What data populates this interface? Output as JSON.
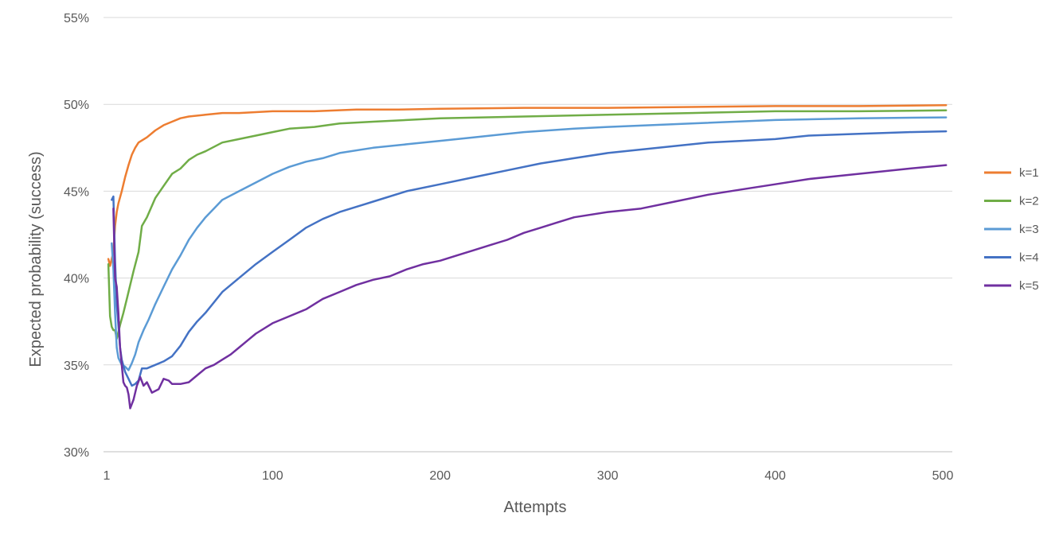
{
  "chart_data": {
    "type": "line",
    "title": "",
    "xlabel": "Attempts",
    "ylabel": "Expected probability (success)",
    "xlim": [
      1,
      505
    ],
    "ylim": [
      30,
      55
    ],
    "x_ticks": [
      1,
      100,
      200,
      300,
      400,
      500
    ],
    "y_ticks": [
      30,
      35,
      40,
      45,
      50,
      55
    ],
    "y_tick_labels": [
      "30%",
      "35%",
      "40%",
      "45%",
      "50%",
      "55%"
    ],
    "grid": "horizontal",
    "legend_position": "right",
    "series": [
      {
        "name": "k=1",
        "color": "#ED7D31",
        "points": [
          [
            2,
            41.1
          ],
          [
            3,
            40.7
          ],
          [
            5,
            41.5
          ],
          [
            6,
            43.0
          ],
          [
            7,
            43.8
          ],
          [
            8,
            44.3
          ],
          [
            10,
            45.0
          ],
          [
            12,
            45.8
          ],
          [
            14,
            46.5
          ],
          [
            16,
            47.1
          ],
          [
            18,
            47.5
          ],
          [
            20,
            47.8
          ],
          [
            25,
            48.1
          ],
          [
            30,
            48.5
          ],
          [
            35,
            48.8
          ],
          [
            40,
            49.0
          ],
          [
            45,
            49.2
          ],
          [
            50,
            49.3
          ],
          [
            60,
            49.4
          ],
          [
            70,
            49.5
          ],
          [
            80,
            49.5
          ],
          [
            100,
            49.6
          ],
          [
            125,
            49.6
          ],
          [
            150,
            49.7
          ],
          [
            175,
            49.7
          ],
          [
            200,
            49.75
          ],
          [
            250,
            49.8
          ],
          [
            300,
            49.8
          ],
          [
            350,
            49.85
          ],
          [
            400,
            49.9
          ],
          [
            450,
            49.9
          ],
          [
            502,
            49.95
          ]
        ]
      },
      {
        "name": "k=2",
        "color": "#70AD47",
        "points": [
          [
            2,
            40.8
          ],
          [
            3,
            37.8
          ],
          [
            4,
            37.2
          ],
          [
            5,
            37.0
          ],
          [
            6,
            37.0
          ],
          [
            7,
            36.5
          ],
          [
            9,
            37.3
          ],
          [
            11,
            38.0
          ],
          [
            13,
            38.8
          ],
          [
            15,
            39.6
          ],
          [
            17,
            40.4
          ],
          [
            20,
            41.5
          ],
          [
            22,
            43.0
          ],
          [
            25,
            43.5
          ],
          [
            30,
            44.6
          ],
          [
            35,
            45.3
          ],
          [
            40,
            46.0
          ],
          [
            45,
            46.3
          ],
          [
            50,
            46.8
          ],
          [
            55,
            47.1
          ],
          [
            60,
            47.3
          ],
          [
            70,
            47.8
          ],
          [
            80,
            48.0
          ],
          [
            90,
            48.2
          ],
          [
            100,
            48.4
          ],
          [
            110,
            48.6
          ],
          [
            125,
            48.7
          ],
          [
            140,
            48.9
          ],
          [
            160,
            49.0
          ],
          [
            180,
            49.1
          ],
          [
            200,
            49.2
          ],
          [
            250,
            49.3
          ],
          [
            300,
            49.4
          ],
          [
            350,
            49.5
          ],
          [
            400,
            49.6
          ],
          [
            450,
            49.6
          ],
          [
            502,
            49.65
          ]
        ]
      },
      {
        "name": "k=3",
        "color": "#5B9BD5",
        "points": [
          [
            4,
            42.0
          ],
          [
            5,
            40.5
          ],
          [
            6,
            38.0
          ],
          [
            7,
            36.0
          ],
          [
            8,
            35.4
          ],
          [
            10,
            35.0
          ],
          [
            12,
            34.9
          ],
          [
            14,
            34.7
          ],
          [
            16,
            35.1
          ],
          [
            18,
            35.6
          ],
          [
            20,
            36.3
          ],
          [
            23,
            37.0
          ],
          [
            26,
            37.6
          ],
          [
            30,
            38.5
          ],
          [
            35,
            39.5
          ],
          [
            40,
            40.5
          ],
          [
            45,
            41.3
          ],
          [
            50,
            42.2
          ],
          [
            55,
            42.9
          ],
          [
            60,
            43.5
          ],
          [
            65,
            44.0
          ],
          [
            70,
            44.5
          ],
          [
            80,
            45.0
          ],
          [
            90,
            45.5
          ],
          [
            100,
            46.0
          ],
          [
            110,
            46.4
          ],
          [
            120,
            46.7
          ],
          [
            130,
            46.9
          ],
          [
            140,
            47.2
          ],
          [
            160,
            47.5
          ],
          [
            180,
            47.7
          ],
          [
            200,
            47.9
          ],
          [
            220,
            48.1
          ],
          [
            250,
            48.4
          ],
          [
            280,
            48.6
          ],
          [
            300,
            48.7
          ],
          [
            350,
            48.9
          ],
          [
            400,
            49.1
          ],
          [
            450,
            49.2
          ],
          [
            502,
            49.25
          ]
        ]
      },
      {
        "name": "k=4",
        "color": "#4472C4",
        "points": [
          [
            4,
            44.5
          ],
          [
            5,
            44.7
          ],
          [
            6,
            41.0
          ],
          [
            7,
            38.5
          ],
          [
            8,
            37.3
          ],
          [
            9,
            36.0
          ],
          [
            10,
            35.3
          ],
          [
            12,
            34.6
          ],
          [
            14,
            34.2
          ],
          [
            16,
            33.8
          ],
          [
            18,
            33.9
          ],
          [
            20,
            34.1
          ],
          [
            22,
            34.8
          ],
          [
            25,
            34.8
          ],
          [
            30,
            35.0
          ],
          [
            35,
            35.2
          ],
          [
            40,
            35.5
          ],
          [
            45,
            36.1
          ],
          [
            50,
            36.9
          ],
          [
            55,
            37.5
          ],
          [
            60,
            38.0
          ],
          [
            65,
            38.6
          ],
          [
            70,
            39.2
          ],
          [
            80,
            40.0
          ],
          [
            90,
            40.8
          ],
          [
            100,
            41.5
          ],
          [
            110,
            42.2
          ],
          [
            120,
            42.9
          ],
          [
            130,
            43.4
          ],
          [
            140,
            43.8
          ],
          [
            150,
            44.1
          ],
          [
            160,
            44.4
          ],
          [
            180,
            45.0
          ],
          [
            200,
            45.4
          ],
          [
            220,
            45.8
          ],
          [
            240,
            46.2
          ],
          [
            260,
            46.6
          ],
          [
            280,
            46.9
          ],
          [
            300,
            47.2
          ],
          [
            320,
            47.4
          ],
          [
            340,
            47.6
          ],
          [
            360,
            47.8
          ],
          [
            380,
            47.9
          ],
          [
            400,
            48.0
          ],
          [
            420,
            48.2
          ],
          [
            450,
            48.3
          ],
          [
            480,
            48.4
          ],
          [
            502,
            48.45
          ]
        ]
      },
      {
        "name": "k=5",
        "color": "#7030A0",
        "points": [
          [
            5,
            44.0
          ],
          [
            6,
            40.0
          ],
          [
            7,
            39.5
          ],
          [
            8,
            38.0
          ],
          [
            9,
            36.0
          ],
          [
            10,
            35.0
          ],
          [
            11,
            34.0
          ],
          [
            12,
            33.8
          ],
          [
            13,
            33.7
          ],
          [
            14,
            33.3
          ],
          [
            15,
            32.5
          ],
          [
            17,
            33.0
          ],
          [
            19,
            33.8
          ],
          [
            21,
            34.3
          ],
          [
            23,
            33.8
          ],
          [
            25,
            34.0
          ],
          [
            28,
            33.4
          ],
          [
            32,
            33.6
          ],
          [
            35,
            34.2
          ],
          [
            38,
            34.1
          ],
          [
            40,
            33.9
          ],
          [
            45,
            33.9
          ],
          [
            50,
            34.0
          ],
          [
            55,
            34.4
          ],
          [
            60,
            34.8
          ],
          [
            65,
            35.0
          ],
          [
            70,
            35.3
          ],
          [
            75,
            35.6
          ],
          [
            80,
            36.0
          ],
          [
            85,
            36.4
          ],
          [
            90,
            36.8
          ],
          [
            100,
            37.4
          ],
          [
            110,
            37.8
          ],
          [
            120,
            38.2
          ],
          [
            130,
            38.8
          ],
          [
            140,
            39.2
          ],
          [
            150,
            39.6
          ],
          [
            160,
            39.9
          ],
          [
            170,
            40.1
          ],
          [
            180,
            40.5
          ],
          [
            190,
            40.8
          ],
          [
            200,
            41.0
          ],
          [
            210,
            41.3
          ],
          [
            220,
            41.6
          ],
          [
            230,
            41.9
          ],
          [
            240,
            42.2
          ],
          [
            250,
            42.6
          ],
          [
            260,
            42.9
          ],
          [
            270,
            43.2
          ],
          [
            280,
            43.5
          ],
          [
            300,
            43.8
          ],
          [
            320,
            44.0
          ],
          [
            340,
            44.4
          ],
          [
            360,
            44.8
          ],
          [
            380,
            45.1
          ],
          [
            400,
            45.4
          ],
          [
            420,
            45.7
          ],
          [
            440,
            45.9
          ],
          [
            460,
            46.1
          ],
          [
            480,
            46.3
          ],
          [
            502,
            46.5
          ]
        ]
      }
    ]
  }
}
